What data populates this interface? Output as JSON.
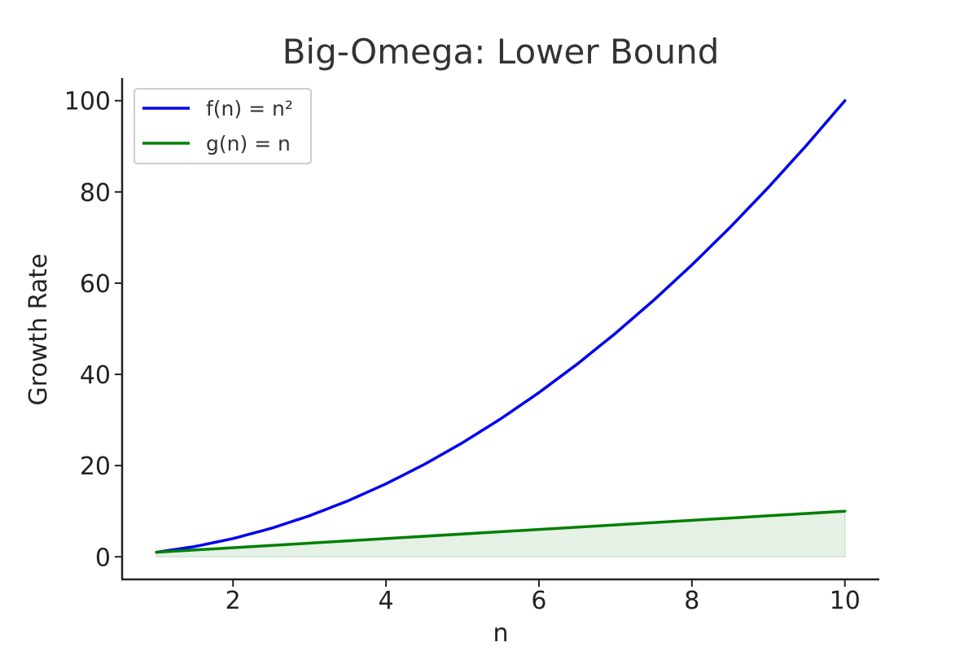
{
  "chart_data": {
    "type": "line",
    "title": "Big-Omega: Lower Bound",
    "xlabel": "n",
    "ylabel": "Growth Rate",
    "xlim": [
      0.55,
      10.45
    ],
    "ylim": [
      -4.95,
      104.95
    ],
    "xticks": [
      2,
      4,
      6,
      8,
      10
    ],
    "yticks": [
      0,
      20,
      40,
      60,
      80,
      100
    ],
    "grid": false,
    "legend_position": "top-left",
    "series": [
      {
        "name": "f(n) = n²",
        "color": "#0000ee",
        "x": [
          1,
          1.5,
          2,
          2.5,
          3,
          3.5,
          4,
          4.5,
          5,
          5.5,
          6,
          6.5,
          7,
          7.5,
          8,
          8.5,
          9,
          9.5,
          10
        ],
        "y": [
          1,
          2.25,
          4,
          6.25,
          9,
          12.25,
          16,
          20.25,
          25,
          30.25,
          36,
          42.25,
          49,
          56.25,
          64,
          72.25,
          81,
          90.25,
          100
        ]
      },
      {
        "name": "g(n) = n",
        "color": "#008000",
        "fill_to_zero": true,
        "fill_color": "#e4f1e4",
        "x": [
          1,
          10
        ],
        "y": [
          1,
          10
        ]
      }
    ]
  }
}
